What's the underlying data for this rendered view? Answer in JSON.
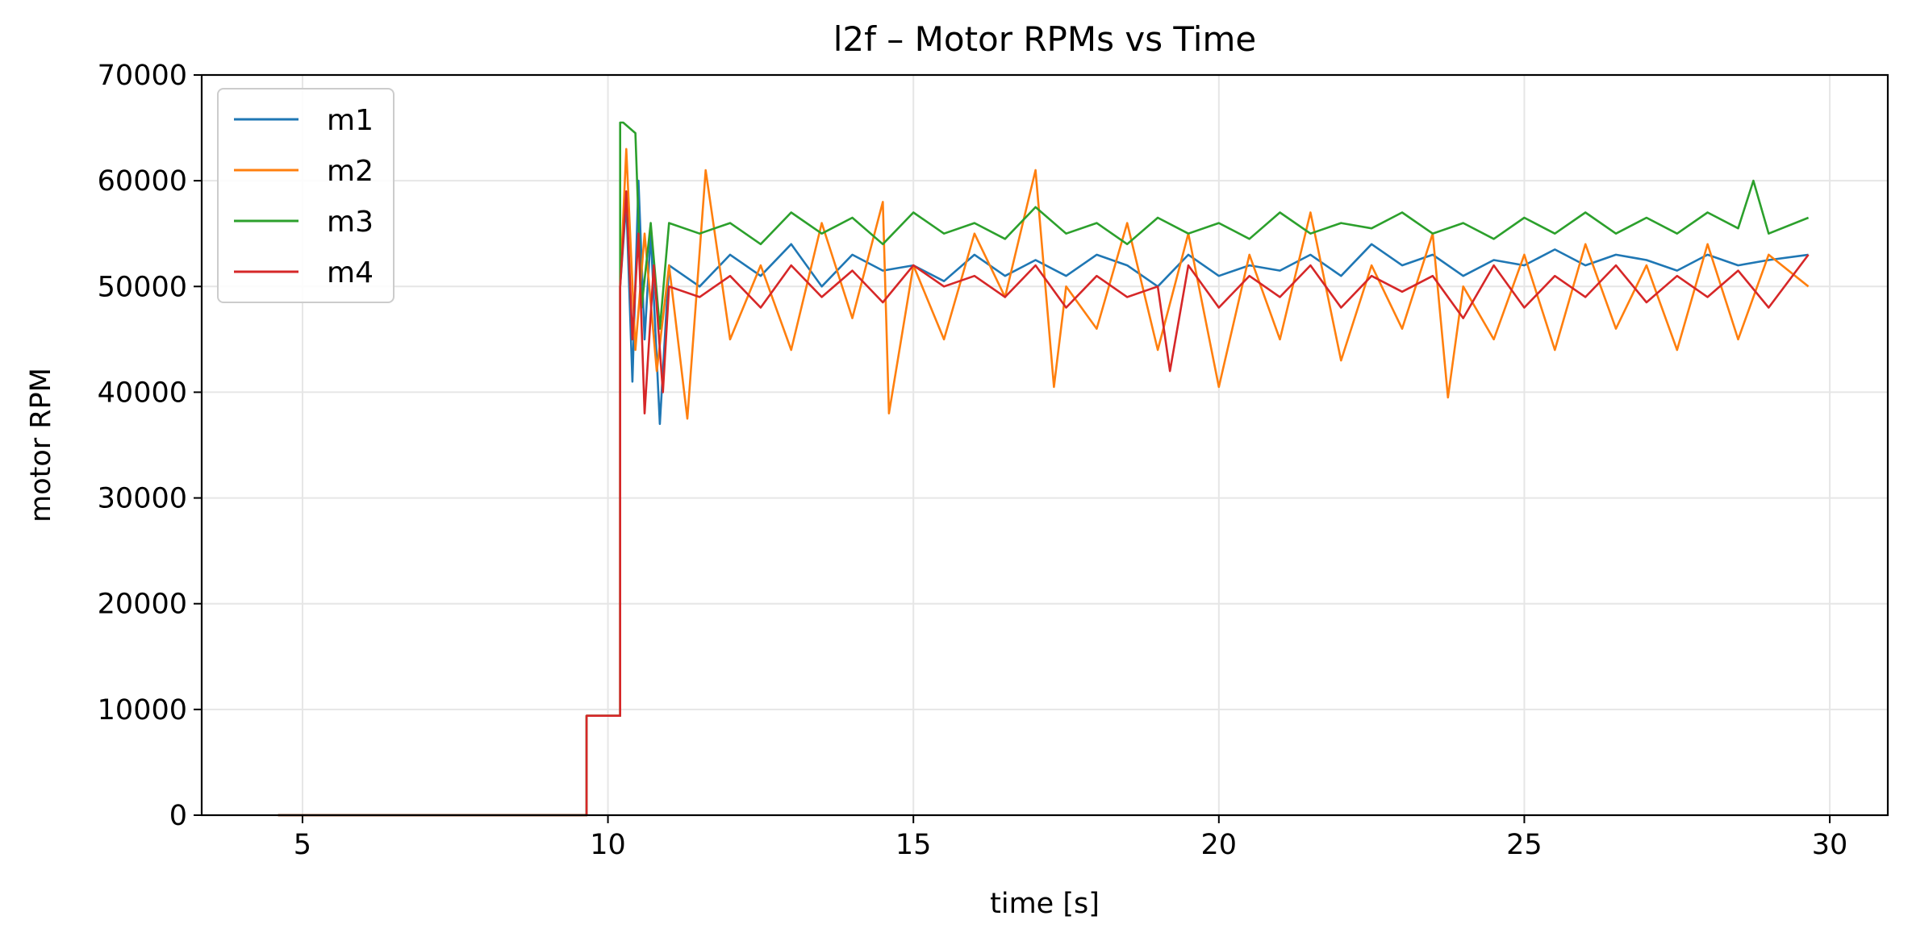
{
  "chart_data": {
    "type": "line",
    "title": "l2f – Motor RPMs vs Time",
    "xlabel": "time [s]",
    "ylabel": "motor RPM",
    "xlim": [
      3.35,
      30.95
    ],
    "ylim": [
      0,
      70000
    ],
    "xticks": [
      5,
      10,
      15,
      20,
      25,
      30
    ],
    "yticks": [
      0,
      10000,
      20000,
      30000,
      40000,
      50000,
      60000,
      70000
    ],
    "grid": true,
    "legend_position": "upper-left",
    "series": [
      {
        "name": "m1",
        "color": "#1f77b4",
        "x": [
          4.6,
          9.65,
          9.65,
          10.2,
          10.2,
          10.3,
          10.4,
          10.5,
          10.6,
          10.7,
          10.85,
          11.0,
          11.5,
          12.0,
          12.5,
          13.0,
          13.5,
          14.0,
          14.5,
          15.0,
          15.5,
          16.0,
          16.5,
          17.0,
          17.5,
          18.0,
          18.5,
          19.0,
          19.5,
          20.0,
          20.5,
          21.0,
          21.5,
          22.0,
          22.5,
          23.0,
          23.5,
          24.0,
          24.5,
          25.0,
          25.5,
          26.0,
          26.5,
          27.0,
          27.5,
          28.0,
          28.5,
          29.0,
          29.65
        ],
        "y": [
          0,
          0,
          9400,
          9400,
          50000,
          58000,
          41000,
          60000,
          45000,
          55000,
          37000,
          52000,
          50000,
          53000,
          51000,
          54000,
          50000,
          53000,
          51500,
          52000,
          50500,
          53000,
          51000,
          52500,
          51000,
          53000,
          52000,
          50000,
          53000,
          51000,
          52000,
          51500,
          53000,
          51000,
          54000,
          52000,
          53000,
          51000,
          52500,
          52000,
          53500,
          52000,
          53000,
          52500,
          51500,
          53000,
          52000,
          52500,
          53000
        ]
      },
      {
        "name": "m2",
        "color": "#ff7f0e",
        "x": [
          4.6,
          9.65,
          9.65,
          10.2,
          10.2,
          10.3,
          10.45,
          10.6,
          10.8,
          11.0,
          11.3,
          11.6,
          12.0,
          12.5,
          13.0,
          13.5,
          14.0,
          14.5,
          14.6,
          15.0,
          15.5,
          16.0,
          16.5,
          17.0,
          17.3,
          17.5,
          18.0,
          18.5,
          19.0,
          19.5,
          20.0,
          20.5,
          21.0,
          21.5,
          22.0,
          22.5,
          23.0,
          23.5,
          23.75,
          24.0,
          24.5,
          25.0,
          25.5,
          26.0,
          26.5,
          27.0,
          27.5,
          28.0,
          28.5,
          29.0,
          29.65
        ],
        "y": [
          0,
          0,
          9400,
          9400,
          50000,
          63000,
          44000,
          55000,
          42000,
          52000,
          37500,
          61000,
          45000,
          52000,
          44000,
          56000,
          47000,
          58000,
          38000,
          52000,
          45000,
          55000,
          49000,
          61000,
          40500,
          50000,
          46000,
          56000,
          44000,
          55000,
          40500,
          53000,
          45000,
          57000,
          43000,
          52000,
          46000,
          55000,
          39500,
          50000,
          45000,
          53000,
          44000,
          54000,
          46000,
          52000,
          44000,
          54000,
          45000,
          53000,
          50000
        ]
      },
      {
        "name": "m3",
        "color": "#2ca02c",
        "x": [
          4.6,
          9.65,
          9.65,
          10.2,
          10.2,
          10.25,
          10.45,
          10.55,
          10.7,
          10.85,
          11.0,
          11.5,
          12.0,
          12.5,
          13.0,
          13.5,
          14.0,
          14.5,
          15.0,
          15.5,
          16.0,
          16.5,
          17.0,
          17.5,
          18.0,
          18.5,
          19.0,
          19.5,
          20.0,
          20.5,
          21.0,
          21.5,
          22.0,
          22.5,
          23.0,
          23.5,
          24.0,
          24.5,
          25.0,
          25.5,
          26.0,
          26.5,
          27.0,
          27.5,
          28.0,
          28.5,
          28.75,
          29.0,
          29.65
        ],
        "y": [
          0,
          0,
          9400,
          9400,
          65500,
          65500,
          64500,
          48000,
          56000,
          46000,
          56000,
          55000,
          56000,
          54000,
          57000,
          55000,
          56500,
          54000,
          57000,
          55000,
          56000,
          54500,
          57500,
          55000,
          56000,
          54000,
          56500,
          55000,
          56000,
          54500,
          57000,
          55000,
          56000,
          55500,
          57000,
          55000,
          56000,
          54500,
          56500,
          55000,
          57000,
          55000,
          56500,
          55000,
          57000,
          55500,
          60000,
          55000,
          56500
        ]
      },
      {
        "name": "m4",
        "color": "#d62728",
        "x": [
          4.6,
          9.65,
          9.65,
          10.2,
          10.2,
          10.3,
          10.4,
          10.5,
          10.6,
          10.75,
          10.9,
          11.0,
          11.5,
          12.0,
          12.5,
          13.0,
          13.5,
          14.0,
          14.5,
          15.0,
          15.5,
          16.0,
          16.5,
          17.0,
          17.5,
          18.0,
          18.5,
          19.0,
          19.2,
          19.5,
          20.0,
          20.5,
          21.0,
          21.5,
          22.0,
          22.5,
          23.0,
          23.5,
          24.0,
          24.5,
          25.0,
          25.5,
          26.0,
          26.5,
          27.0,
          27.5,
          28.0,
          28.5,
          29.0,
          29.65
        ],
        "y": [
          0,
          0,
          9400,
          9400,
          50000,
          59000,
          45000,
          55000,
          38000,
          52000,
          40000,
          50000,
          49000,
          51000,
          48000,
          52000,
          49000,
          51500,
          48500,
          52000,
          50000,
          51000,
          49000,
          52000,
          48000,
          51000,
          49000,
          50000,
          42000,
          52000,
          48000,
          51000,
          49000,
          52000,
          48000,
          51000,
          49500,
          51000,
          47000,
          52000,
          48000,
          51000,
          49000,
          52000,
          48500,
          51000,
          49000,
          51500,
          48000,
          53000
        ]
      }
    ]
  }
}
